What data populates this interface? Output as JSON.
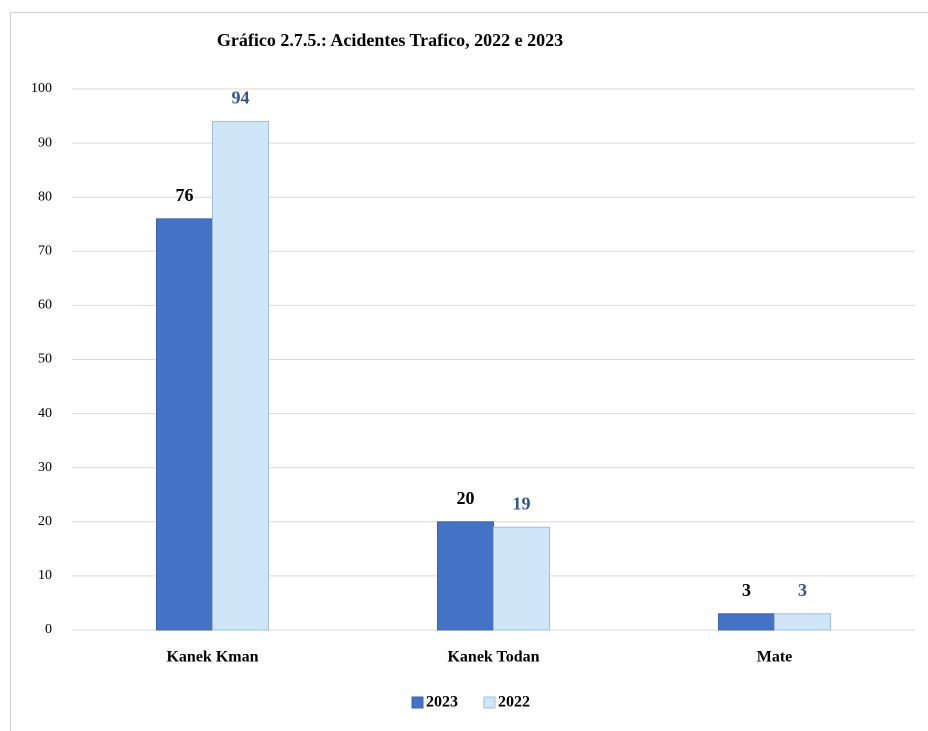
{
  "chart_data": {
    "type": "bar",
    "title": "Gráfico 2.7.5.: Acidentes Trafico, 2022 e 2023",
    "categories": [
      "Kanek Kman",
      "Kanek Todan",
      "Mate"
    ],
    "series": [
      {
        "name": "2023",
        "color": "#4472c4",
        "label_color": "#000000",
        "values": [
          76,
          20,
          3
        ]
      },
      {
        "name": "2022",
        "color": "#cfe5f8",
        "label_color": "#2f5597",
        "values": [
          94,
          19,
          3
        ]
      }
    ],
    "ylim": [
      0,
      100
    ],
    "yticks": [
      0,
      10,
      20,
      30,
      40,
      50,
      60,
      70,
      80,
      90,
      100
    ],
    "grid": true,
    "legend": "bottom"
  }
}
